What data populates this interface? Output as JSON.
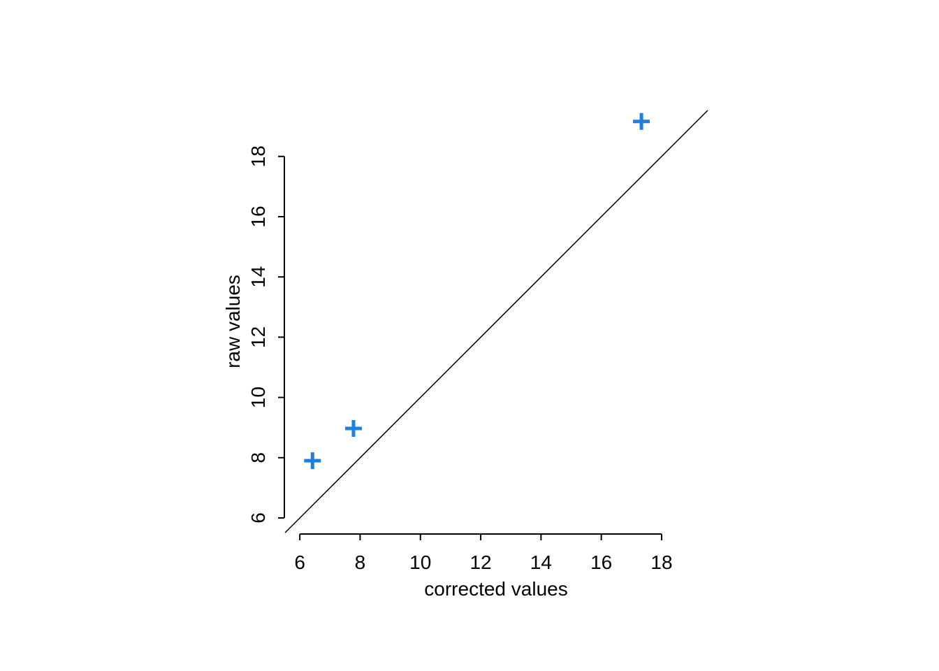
{
  "chart_data": {
    "type": "scatter",
    "x_label": "corrected values",
    "y_label": "raw values",
    "series": [
      {
        "color": "#1f7fe0",
        "x": [
          6.42,
          7.78,
          17.33
        ],
        "values": [
          7.9,
          8.97,
          19.16
        ]
      }
    ],
    "xlim": [
      5.51,
      19.53
    ],
    "ylim": [
      5.49,
      19.55
    ],
    "xticks": [
      6,
      8,
      10,
      12,
      14,
      16,
      18
    ],
    "yticks": [
      6,
      8,
      10,
      12,
      14,
      16,
      18
    ],
    "identity_line": true
  }
}
